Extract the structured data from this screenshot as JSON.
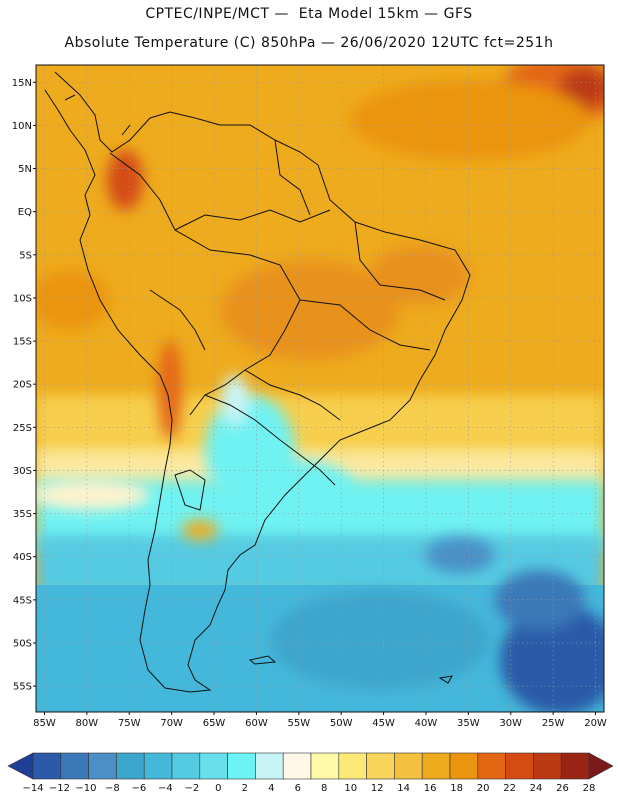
{
  "header": {
    "title_line1": "CPTEC/INPE/MCT —  Eta Model 15km — GFS",
    "title_line2": "Absolute Temperature (C) 850hPa — 26/06/2020 12UTC fct=251h"
  },
  "map": {
    "lat_labels": [
      "15N",
      "10N",
      "5N",
      "EQ",
      "5S",
      "10S",
      "15S",
      "20S",
      "25S",
      "30S",
      "35S",
      "40S",
      "45S",
      "50S",
      "55S"
    ],
    "lon_labels": [
      "85W",
      "80W",
      "75W",
      "70W",
      "65W",
      "60W",
      "55W",
      "50W",
      "45W",
      "40W",
      "35W",
      "30W",
      "25W",
      "20W"
    ],
    "lat_range": [
      17,
      -58
    ],
    "lon_range": [
      -86,
      -19
    ]
  },
  "colorbar": {
    "labels": [
      "-14",
      "-12",
      "-10",
      "-8",
      "-6",
      "-4",
      "-2",
      "0",
      "2",
      "4",
      "6",
      "8",
      "10",
      "12",
      "14",
      "16",
      "18",
      "20",
      "22",
      "24",
      "26",
      "28"
    ],
    "colors": [
      "#1f3f97",
      "#2a5aa8",
      "#3a78b8",
      "#4a90c6",
      "#3da6cc",
      "#44b8da",
      "#55cbe3",
      "#6adfec",
      "#6cf4f4",
      "#c8f4f6",
      "#fff8e6",
      "#fffaa8",
      "#fde978",
      "#f8d55a",
      "#f3c040",
      "#eeab1d",
      "#eb9410",
      "#e36612",
      "#d44c12",
      "#bb3a12",
      "#9a2414",
      "#7a1a1a"
    ]
  }
}
